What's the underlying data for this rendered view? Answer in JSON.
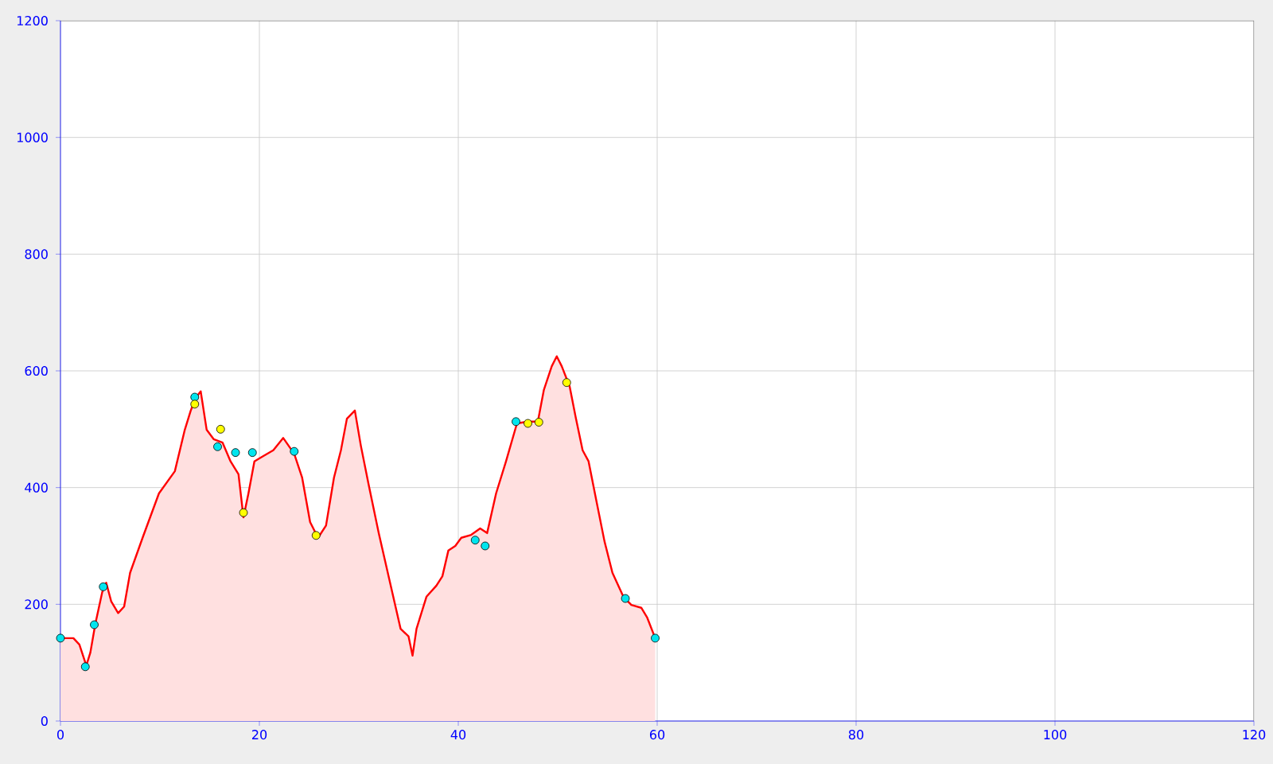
{
  "chart_data": {
    "type": "area",
    "xlim": [
      0,
      120
    ],
    "ylim": [
      0,
      1200
    ],
    "xticks": [
      0,
      20,
      40,
      60,
      80,
      100,
      120
    ],
    "yticks": [
      0,
      200,
      400,
      600,
      800,
      1000,
      1200
    ],
    "grid": true,
    "series": [
      {
        "color": "#ff0000",
        "marker": "none",
        "x": [
          0,
          1.3,
          1.9,
          2.6,
          3.0,
          3.5,
          4.2,
          4.6,
          5.1,
          5.8,
          6.4,
          7.0,
          8.3,
          9.9,
          11.5,
          12.5,
          13.1,
          13.6,
          14.1,
          14.7,
          15.4,
          16.3,
          17.1,
          17.9,
          18.4,
          18.9,
          19.5,
          20.3,
          21.4,
          22.4,
          23.5,
          24.3,
          25.1,
          25.9,
          26.7,
          27.5,
          28.2,
          28.8,
          29.6,
          30.2,
          31.0,
          32.0,
          33.1,
          34.2,
          35.0,
          35.4,
          35.8,
          36.8,
          37.8,
          38.4,
          39.0,
          39.7,
          40.3,
          41.3,
          42.2,
          42.9,
          43.8,
          44.8,
          45.9,
          47.0,
          48.0,
          48.6,
          49.4,
          49.9,
          50.4,
          51.2,
          51.8,
          52.5,
          53.1,
          53.9,
          54.7,
          55.5,
          56.6,
          57.4,
          58.4,
          59.0,
          59.8
        ],
        "values": [
          142,
          142,
          131,
          95,
          117,
          166,
          221,
          237,
          205,
          185,
          196,
          254,
          316,
          390,
          428,
          499,
          532,
          554,
          565,
          499,
          483,
          477,
          445,
          423,
          349,
          390,
          445,
          453,
          464,
          485,
          458,
          417,
          341,
          314,
          335,
          417,
          464,
          518,
          532,
          472,
          404,
          322,
          240,
          158,
          145,
          112,
          158,
          213,
          232,
          248,
          292,
          300,
          314,
          319,
          330,
          322,
          390,
          445,
          510,
          513,
          513,
          567,
          608,
          625,
          608,
          573,
          521,
          464,
          445,
          376,
          308,
          254,
          213,
          199,
          194,
          177,
          142
        ]
      },
      {
        "type": "scatter",
        "color": "#00e5ee",
        "marker": "circle",
        "x": [
          0,
          2.5,
          3.4,
          4.3,
          13.5,
          15.8,
          17.6,
          19.3,
          23.5,
          41.7,
          42.7,
          45.8,
          56.8,
          59.8
        ],
        "values": [
          142,
          93,
          165,
          230,
          555,
          470,
          460,
          460,
          462,
          310,
          300,
          513,
          210,
          142
        ]
      },
      {
        "type": "scatter",
        "color": "#ffff00",
        "marker": "circle",
        "x": [
          13.5,
          16.1,
          18.4,
          25.7,
          47.0,
          48.1,
          50.9
        ],
        "values": [
          543,
          500,
          357,
          318,
          510,
          512,
          580
        ]
      }
    ]
  }
}
